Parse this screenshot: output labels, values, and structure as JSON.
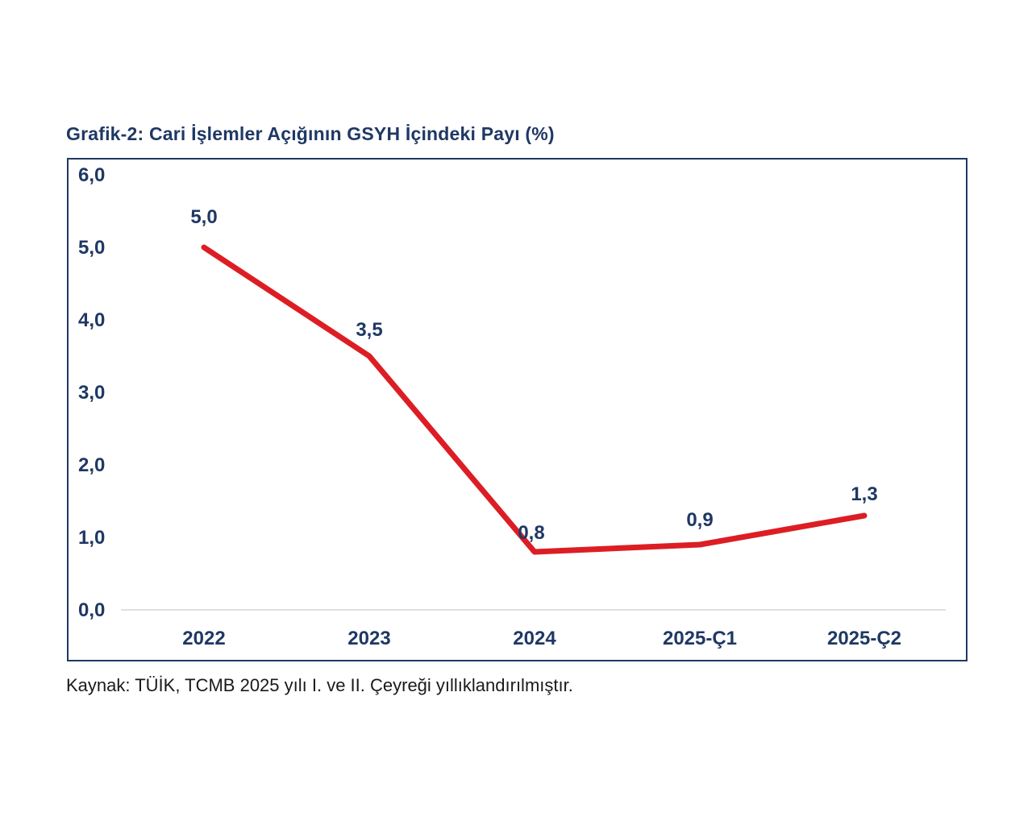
{
  "title": "Grafik-2: Cari İşlemler Açığının GSYH İçindeki Payı (%)",
  "source": "Kaynak: TÜİK, TCMB 2025 yılı I. ve II. Çeyreği yıllıklandırılmıştır.",
  "colors": {
    "text_navy": "#1F3864",
    "line_red": "#DC1E24",
    "baseline_gray": "#D6D6D6",
    "frame_border": "#1F3864",
    "source_text": "#1a1a1a",
    "background": "#ffffff"
  },
  "chart_data": {
    "type": "line",
    "title": "Grafik-2: Cari İşlemler Açığının GSYH İçindeki Payı (%)",
    "categories": [
      "2022",
      "2023",
      "2024",
      "2025-Ç1",
      "2025-Ç2"
    ],
    "values": [
      5.0,
      3.5,
      0.8,
      0.9,
      1.3
    ],
    "value_labels": [
      "5,0",
      "3,5",
      "0,8",
      "0,9",
      "1,3"
    ],
    "y_ticks": [
      {
        "value": 6,
        "label": "6,0"
      },
      {
        "value": 5,
        "label": "5,0"
      },
      {
        "value": 4,
        "label": "4,0"
      },
      {
        "value": 3,
        "label": "3,0"
      },
      {
        "value": 2,
        "label": "2,0"
      },
      {
        "value": 1,
        "label": "1,0"
      },
      {
        "value": 0,
        "label": "0,0"
      }
    ],
    "ylim": [
      0,
      6
    ],
    "xlabel": "",
    "ylabel": "",
    "grid": false,
    "legend": "none",
    "line_color": "#DC1E24"
  }
}
